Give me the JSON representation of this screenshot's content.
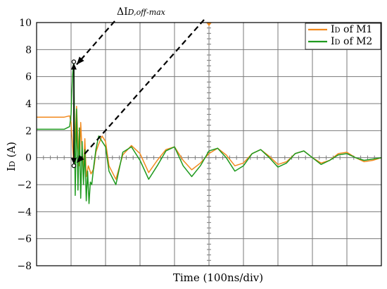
{
  "chart_data": {
    "type": "line",
    "title": "",
    "xlabel": "Time (100ns/div)",
    "ylabel": "ID (A)",
    "ylabel_main": "I",
    "ylabel_sub": "D",
    "ylabel_unit": " (A)",
    "ylim": [
      -8,
      10
    ],
    "yticks": [
      10,
      8,
      6,
      4,
      2,
      0,
      -2,
      -4,
      -6,
      -8
    ],
    "ytick_labels": [
      "10",
      "8",
      "6",
      "4",
      "2",
      "0",
      "−2",
      "−4",
      "−6",
      "−8"
    ],
    "x_unit": "100ns/div",
    "xlim": [
      0,
      1000
    ],
    "x_divisions": 10,
    "grid": true,
    "legend_position": "top-right",
    "annotation": {
      "prefix": "ΔI",
      "subscript": "D,off-max",
      "from_value": 7.1,
      "to_value": -0.6,
      "at_x": 108
    },
    "series": [
      {
        "name": "ID of M1",
        "name_main": "I",
        "name_sub": "D",
        "name_rest": " of M1",
        "color": "#f28a1f",
        "x": [
          0,
          80,
          96,
          100,
          104,
          108,
          112,
          116,
          120,
          124,
          128,
          132,
          136,
          140,
          144,
          150,
          158,
          166,
          172,
          180,
          190,
          200,
          210,
          230,
          250,
          275,
          300,
          325,
          350,
          375,
          400,
          425,
          450,
          475,
          500,
          525,
          550,
          575,
          600,
          625,
          650,
          675,
          700,
          725,
          750,
          775,
          800,
          825,
          850,
          875,
          900,
          925,
          950,
          975,
          1000
        ],
        "y": [
          3.0,
          3.0,
          3.1,
          2.6,
          1.0,
          -0.4,
          1.6,
          3.8,
          1.2,
          -0.6,
          2.6,
          0.4,
          -1.0,
          1.4,
          -1.4,
          -0.6,
          -1.2,
          -0.8,
          0.4,
          1.0,
          1.6,
          1.2,
          -0.6,
          -1.6,
          0.2,
          0.9,
          0.3,
          -1.1,
          -0.2,
          0.6,
          0.8,
          -0.2,
          -0.9,
          -0.4,
          0.3,
          0.7,
          0.2,
          -0.6,
          -0.4,
          0.3,
          0.6,
          0.1,
          -0.5,
          -0.3,
          0.3,
          0.5,
          0.0,
          -0.4,
          -0.2,
          0.3,
          0.4,
          0.0,
          -0.3,
          -0.2,
          0.0
        ]
      },
      {
        "name": "ID of M2",
        "name_main": "I",
        "name_sub": "D",
        "name_rest": " of M2",
        "color": "#1f9a1f",
        "x": [
          0,
          80,
          96,
          100,
          104,
          108,
          112,
          116,
          120,
          124,
          128,
          132,
          136,
          140,
          144,
          148,
          152,
          156,
          160,
          166,
          172,
          180,
          190,
          200,
          210,
          230,
          250,
          275,
          300,
          325,
          350,
          375,
          400,
          425,
          450,
          475,
          500,
          525,
          550,
          575,
          600,
          625,
          650,
          675,
          700,
          725,
          750,
          775,
          800,
          825,
          850,
          875,
          900,
          925,
          950,
          975,
          1000
        ],
        "y": [
          2.1,
          2.1,
          2.3,
          3.2,
          6.0,
          7.2,
          -2.8,
          3.6,
          -2.4,
          2.2,
          -3.0,
          1.2,
          -2.0,
          0.6,
          -3.2,
          -1.0,
          -3.4,
          -1.8,
          -2.0,
          -0.6,
          0.6,
          1.6,
          1.2,
          0.8,
          -1.0,
          -2.0,
          0.4,
          0.8,
          -0.2,
          -1.6,
          -0.6,
          0.5,
          0.8,
          -0.6,
          -1.4,
          -0.6,
          0.5,
          0.7,
          0.0,
          -1.0,
          -0.6,
          0.3,
          0.6,
          0.0,
          -0.7,
          -0.4,
          0.3,
          0.5,
          0.0,
          -0.5,
          -0.2,
          0.2,
          0.3,
          0.0,
          -0.2,
          -0.1,
          0.0
        ]
      }
    ]
  }
}
